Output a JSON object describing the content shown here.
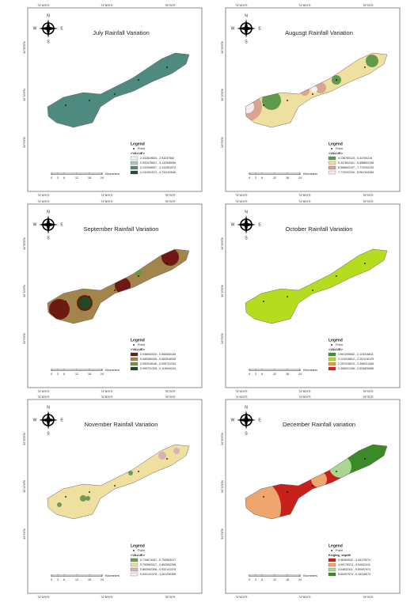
{
  "compass": {
    "n": "N",
    "e": "E",
    "s": "S",
    "w": "W"
  },
  "scale": {
    "ticks": [
      "0",
      "3",
      "6",
      "12",
      "18",
      "24"
    ],
    "unit": "Kilometers"
  },
  "coords_x": [
    "74°40'0\"E",
    "74°50'0\"E",
    "75°0'0\"E"
  ],
  "coords_y": [
    "34°20'0\"N",
    "34°10'0\"N",
    "34°0'0\"N"
  ],
  "panels": [
    {
      "title": "July Rainfall Variation",
      "legend_title": "Legend",
      "point_label": "Point",
      "value_label": "<VALUE>",
      "items": [
        {
          "label": "2.332819834 - 2.93247682",
          "color": "#eef4f1"
        },
        {
          "label": "2.932476821 - 3.132946096",
          "color": "#a7c7bd"
        },
        {
          "label": "3.132946097 - 4.131051572",
          "color": "#4f8a80"
        },
        {
          "label": "4.131051573 - 4.731102546",
          "color": "#1f4d44"
        }
      ]
    },
    {
      "title": "Augusgt Rainfall Variation",
      "legend_title": "Legend",
      "point_label": "Point",
      "value_label": "<VALUE>",
      "items": [
        {
          "label": "4.136760123 - 5.34760216",
          "color": "#5f9a4e"
        },
        {
          "label": "5.347602161 - 6.558603108",
          "color": "#efe0a0"
        },
        {
          "label": "6.558603197 - 7.770202233",
          "color": "#d8a590"
        },
        {
          "label": "7.770202234 - 8.981343269",
          "color": "#f6eef2"
        }
      ]
    },
    {
      "title": "September Rainfall Variation",
      "legend_title": "Legend",
      "point_label": "Point",
      "value_label": "<VALUE>",
      "items": [
        {
          "label": "0.048692020 - 0.065360435",
          "color": "#6e1a12"
        },
        {
          "label": "0.065360436 - 0.082516045",
          "color": "#a3844a"
        },
        {
          "label": "0.082516046 - 0.099731334",
          "color": "#6a9a3a"
        },
        {
          "label": "0.099731335 - 0.116944104",
          "color": "#1f4a1f"
        }
      ]
    },
    {
      "title": "October Rainfall Variation",
      "legend_title": "Legend",
      "point_label": "Point",
      "value_label": "<VALUE>",
      "items": [
        {
          "label": "1.901205682 - 2.124316811",
          "color": "#3a9a2a"
        },
        {
          "label": "2.124316812 - 2.257416129",
          "color": "#b5dc1e"
        },
        {
          "label": "2.257416013 - 2.396021346",
          "color": "#f0a020"
        },
        {
          "label": "2.396021346 - 2.523826086",
          "color": "#e52020"
        }
      ]
    },
    {
      "title": "November Rainfall Variation",
      "legend_title": "Legend",
      "point_label": "Point",
      "value_label": "<VALUE>",
      "items": [
        {
          "label": "0.724674437 - 0.793963417",
          "color": "#6e9a55"
        },
        {
          "label": "0.793963417 - 0.863052398",
          "color": "#efe0a0"
        },
        {
          "label": "0.863052398 - 0.932141378",
          "color": "#d7b1b8"
        },
        {
          "label": "0.932141378 - 1.001230359",
          "color": "#f6eef2"
        }
      ]
    },
    {
      "title": "December Rainfall variation",
      "legend_title": "Legend",
      "point_label": "Point",
      "value_label": "Kriging_shp48",
      "items": [
        {
          "label": "3.98363042 - 4.49175374",
          "color": "#c8201a"
        },
        {
          "label": "4.49175374 - 5.04632411",
          "color": "#eea56e"
        },
        {
          "label": "5.04632411 - 5.60097974",
          "color": "#a8d890"
        },
        {
          "label": "5.60097974 - 6.15316974",
          "color": "#3a8a28"
        }
      ]
    }
  ]
}
